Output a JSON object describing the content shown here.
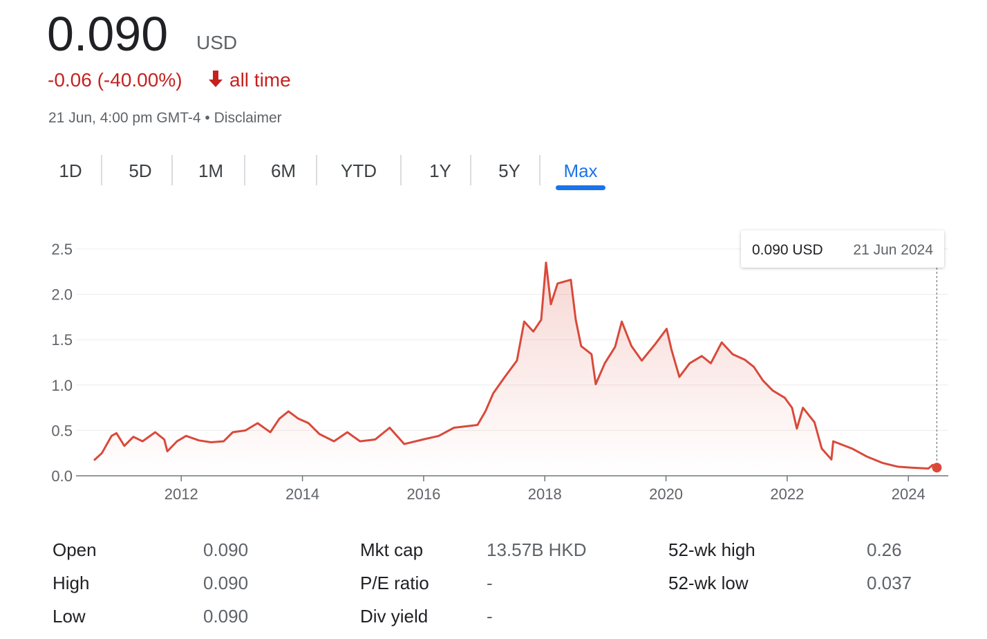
{
  "header": {
    "price": "0.090",
    "currency": "USD",
    "change": "-0.06 (-40.00%)",
    "period": "all time",
    "timestamp": "21 Jun, 4:00 pm GMT-4 • Disclaimer"
  },
  "tabs": [
    "1D",
    "5D",
    "1M",
    "6M",
    "YTD",
    "1Y",
    "5Y",
    "Max"
  ],
  "active_tab_index": 7,
  "chart_data": {
    "type": "line",
    "color": "#d9493a",
    "x": [
      2010.56,
      2010.69,
      2010.85,
      2010.93,
      2011.06,
      2011.21,
      2011.36,
      2011.57,
      2011.72,
      2011.77,
      2011.93,
      2012.08,
      2012.29,
      2012.49,
      2012.7,
      2012.85,
      2013.06,
      2013.26,
      2013.47,
      2013.62,
      2013.77,
      2013.93,
      2014.1,
      2014.28,
      2014.52,
      2014.74,
      2014.95,
      2015.2,
      2015.44,
      2015.68,
      2015.99,
      2016.25,
      2016.5,
      2016.89,
      2017.02,
      2017.15,
      2017.34,
      2017.54,
      2017.66,
      2017.81,
      2017.94,
      2018.02,
      2018.1,
      2018.21,
      2018.43,
      2018.51,
      2018.6,
      2018.77,
      2018.84,
      2018.99,
      2019.16,
      2019.27,
      2019.43,
      2019.6,
      2019.82,
      2020.01,
      2020.09,
      2020.22,
      2020.39,
      2020.59,
      2020.74,
      2020.92,
      2021.1,
      2021.3,
      2021.45,
      2021.6,
      2021.76,
      2021.96,
      2022.08,
      2022.16,
      2022.26,
      2022.45,
      2022.57,
      2022.73,
      2022.76,
      2023.07,
      2023.32,
      2023.58,
      2023.83,
      2024.05,
      2024.33,
      2024.4,
      2024.47
    ],
    "values": [
      0.17,
      0.25,
      0.44,
      0.47,
      0.33,
      0.43,
      0.38,
      0.48,
      0.4,
      0.27,
      0.38,
      0.44,
      0.39,
      0.37,
      0.38,
      0.48,
      0.5,
      0.58,
      0.48,
      0.63,
      0.71,
      0.63,
      0.58,
      0.46,
      0.38,
      0.48,
      0.38,
      0.4,
      0.53,
      0.35,
      0.4,
      0.44,
      0.53,
      0.56,
      0.71,
      0.91,
      1.09,
      1.27,
      1.7,
      1.59,
      1.72,
      2.35,
      1.89,
      2.12,
      2.16,
      1.72,
      1.43,
      1.34,
      1.01,
      1.24,
      1.42,
      1.7,
      1.43,
      1.27,
      1.45,
      1.62,
      1.39,
      1.09,
      1.24,
      1.32,
      1.24,
      1.47,
      1.34,
      1.28,
      1.2,
      1.05,
      0.94,
      0.86,
      0.75,
      0.52,
      0.75,
      0.59,
      0.3,
      0.18,
      0.38,
      0.3,
      0.21,
      0.14,
      0.1,
      0.09,
      0.08,
      0.12,
      0.09
    ],
    "xlim": [
      2010.4,
      2024.7
    ],
    "xticks": [
      2012,
      2014,
      2016,
      2018,
      2020,
      2022,
      2024
    ],
    "ylim": [
      0,
      2.5
    ],
    "yticks": [
      {
        "value": 0,
        "label": "0.0"
      },
      0.5,
      {
        "value": 1,
        "label": "1.0"
      },
      1.5,
      {
        "value": 2,
        "label": "2.0"
      },
      2.5
    ],
    "grid": true,
    "tooltip": {
      "value": "0.090 USD",
      "date": "21 Jun 2024"
    }
  },
  "stats": [
    {
      "label": "Open",
      "value": "0.090"
    },
    {
      "label": "High",
      "value": "0.090"
    },
    {
      "label": "Low",
      "value": "0.090"
    },
    {
      "label": "Mkt cap",
      "value": "13.57B HKD"
    },
    {
      "label": "P/E ratio",
      "value": "-"
    },
    {
      "label": "Div yield",
      "value": "-"
    },
    {
      "label": "52-wk high",
      "value": "0.26"
    },
    {
      "label": "52-wk low",
      "value": "0.037"
    }
  ]
}
